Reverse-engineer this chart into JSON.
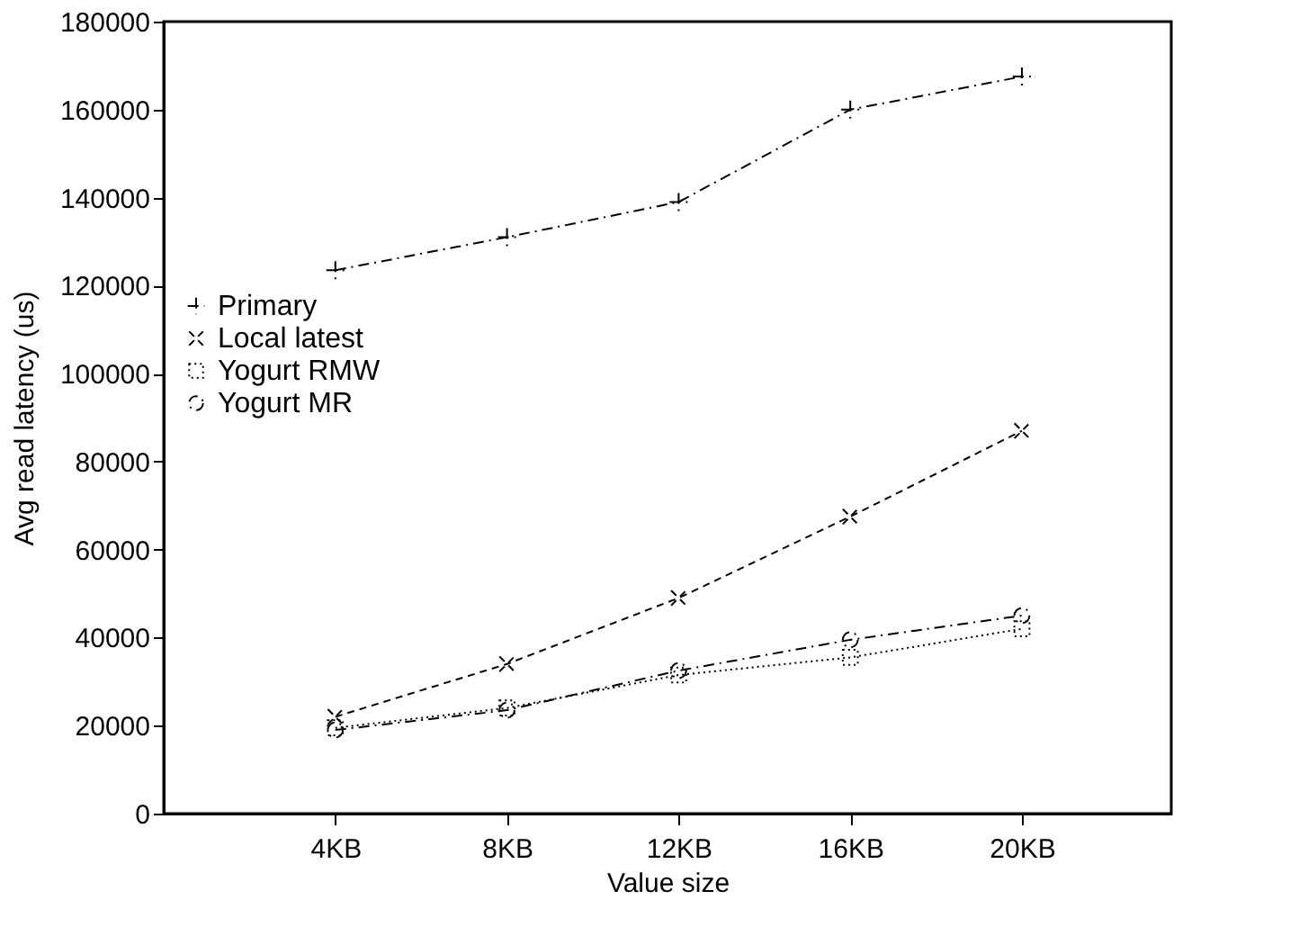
{
  "chart_data": {
    "type": "line",
    "xlabel": "Value size",
    "ylabel": "Avg read latency (us)",
    "categories": [
      "4KB",
      "8KB",
      "12KB",
      "16KB",
      "20KB"
    ],
    "series": [
      {
        "name": "Primary",
        "color": "#000000",
        "marker": "cross",
        "line_style": "dashdot",
        "values": [
          123500,
          131000,
          139000,
          160000,
          167500
        ]
      },
      {
        "name": "Local latest",
        "color": "#000000",
        "marker": "x",
        "line_style": "dashed",
        "values": [
          22000,
          34000,
          49000,
          67500,
          87000
        ]
      },
      {
        "name": "Yogurt RMW",
        "color": "#000000",
        "marker": "square",
        "line_style": "dotted",
        "values": [
          19500,
          24000,
          31500,
          35500,
          42000
        ]
      },
      {
        "name": "Yogurt MR",
        "color": "#000000",
        "marker": "circle",
        "line_style": "dashdot",
        "values": [
          19000,
          23500,
          32500,
          39500,
          45000
        ]
      }
    ],
    "ylim": [
      0,
      180000
    ],
    "yticks": [
      0,
      20000,
      40000,
      60000,
      80000,
      100000,
      120000,
      140000,
      160000,
      180000
    ],
    "grid": false,
    "legend": "left"
  }
}
